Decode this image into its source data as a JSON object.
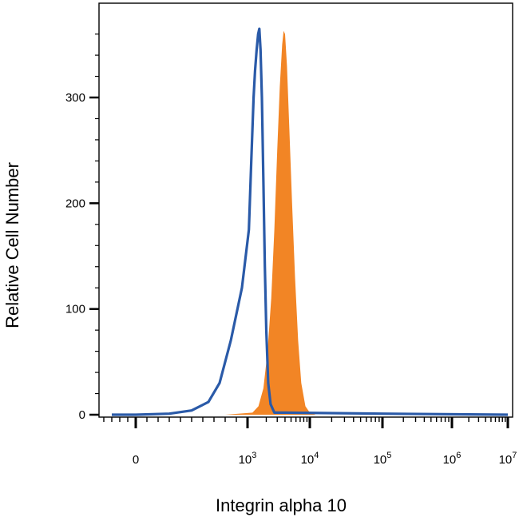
{
  "chart_data": {
    "type": "area",
    "title": "",
    "xlabel": "Integrin alpha 10",
    "ylabel": "Relative Cell Number",
    "x_scale": "logicle",
    "y_ticks": [
      {
        "value": 0,
        "label": "0"
      },
      {
        "value": 100,
        "label": "100"
      },
      {
        "value": 200,
        "label": "200"
      },
      {
        "value": 300,
        "label": "300"
      }
    ],
    "x_ticks": [
      {
        "value": 0,
        "base": "0",
        "exp": ""
      },
      {
        "value": 1000,
        "base": "10",
        "exp": "3"
      },
      {
        "value": 10000,
        "base": "10",
        "exp": "4"
      },
      {
        "value": 100000,
        "base": "10",
        "exp": "5"
      },
      {
        "value": 1000000,
        "base": "10",
        "exp": "6"
      },
      {
        "value": 10000000,
        "base": "10",
        "exp": "7"
      }
    ],
    "ylim": [
      0,
      380
    ],
    "series": [
      {
        "style": "line",
        "color": "#2a5aa8",
        "points": [
          [
            -300,
            0
          ],
          [
            0,
            0
          ],
          [
            300,
            1
          ],
          [
            500,
            4
          ],
          [
            650,
            12
          ],
          [
            750,
            30
          ],
          [
            850,
            70
          ],
          [
            950,
            120
          ],
          [
            1050,
            175
          ],
          [
            1150,
            240
          ],
          [
            1250,
            300
          ],
          [
            1320,
            325
          ],
          [
            1400,
            345
          ],
          [
            1480,
            360
          ],
          [
            1550,
            365
          ],
          [
            1620,
            345
          ],
          [
            1700,
            300
          ],
          [
            1800,
            220
          ],
          [
            1900,
            140
          ],
          [
            2000,
            80
          ],
          [
            2150,
            30
          ],
          [
            2350,
            10
          ],
          [
            2700,
            2
          ],
          [
            4000,
            2
          ],
          [
            100000,
            1
          ],
          [
            10000000,
            0
          ]
        ]
      },
      {
        "style": "filled",
        "color": "#f28525",
        "points": [
          [
            800,
            0
          ],
          [
            1200,
            2
          ],
          [
            1500,
            8
          ],
          [
            1800,
            25
          ],
          [
            2100,
            60
          ],
          [
            2400,
            110
          ],
          [
            2700,
            175
          ],
          [
            3000,
            250
          ],
          [
            3300,
            310
          ],
          [
            3600,
            350
          ],
          [
            3800,
            363
          ],
          [
            4000,
            360
          ],
          [
            4300,
            330
          ],
          [
            4700,
            270
          ],
          [
            5200,
            200
          ],
          [
            5800,
            130
          ],
          [
            6500,
            70
          ],
          [
            7300,
            30
          ],
          [
            8500,
            8
          ],
          [
            10000,
            2
          ],
          [
            12000,
            0
          ]
        ]
      }
    ]
  }
}
